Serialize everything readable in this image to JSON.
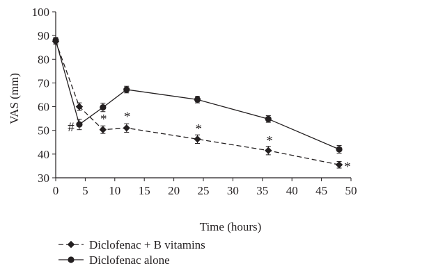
{
  "chart_data": {
    "type": "line",
    "title": "",
    "xlabel": "Time (hours)",
    "ylabel": "VAS (mm)",
    "xlim": [
      0,
      50
    ],
    "ylim": [
      30,
      100
    ],
    "xticks": [
      "0",
      "5",
      "10",
      "15",
      "20",
      "25",
      "30",
      "35",
      "40",
      "45",
      "50"
    ],
    "yticks": [
      "30",
      "40",
      "50",
      "60",
      "70",
      "80",
      "90",
      "100"
    ],
    "grid": false,
    "legend_position": "bottom-left",
    "series": [
      {
        "name": "Diclofenac + B vitamins",
        "line_style": "dashed",
        "marker": "diamond",
        "color": "#231f20",
        "x": [
          0,
          4,
          8,
          12,
          24,
          36,
          48
        ],
        "y": [
          87.5,
          60,
          50.3,
          51,
          46.3,
          41.5,
          35.5
        ],
        "error": [
          1.2,
          1.6,
          1.6,
          1.8,
          1.8,
          1.8,
          1.4
        ]
      },
      {
        "name": "Diclofenac alone",
        "line_style": "solid",
        "marker": "circle",
        "color": "#231f20",
        "x": [
          0,
          4,
          8,
          12,
          24,
          36,
          48
        ],
        "y": [
          88,
          52.5,
          59.7,
          67.2,
          63,
          54.8,
          42
        ],
        "error": [
          1.2,
          2.2,
          1.8,
          1.4,
          1.4,
          1.4,
          1.6
        ]
      }
    ],
    "annotations": [
      {
        "text": "#",
        "x": 2.6,
        "y": 51.7
      },
      {
        "text": "*",
        "x": 8.1,
        "y": 55
      },
      {
        "text": "*",
        "x": 12.1,
        "y": 56
      },
      {
        "text": "*",
        "x": 24.2,
        "y": 51
      },
      {
        "text": "*",
        "x": 36.2,
        "y": 46
      },
      {
        "text": "*",
        "x": 49.4,
        "y": 35
      }
    ]
  }
}
